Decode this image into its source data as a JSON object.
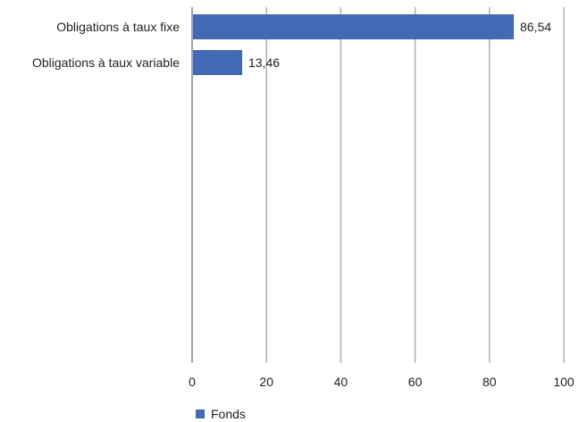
{
  "chart_data": {
    "type": "bar",
    "orientation": "horizontal",
    "categories": [
      "Obligations à taux fixe",
      "Obligations à taux variable"
    ],
    "series": [
      {
        "name": "Fonds",
        "values": [
          86.54,
          13.46
        ],
        "labels": [
          "86,54",
          "13,46"
        ]
      }
    ],
    "xlim": [
      0,
      100
    ],
    "xticks": [
      0,
      20,
      40,
      60,
      80,
      100
    ],
    "grid": "vertical",
    "legend": "bottom-left",
    "title": "",
    "xlabel": "",
    "ylabel": ""
  },
  "colors": {
    "bar": "#4169b6",
    "grid": "#b0b0b0",
    "axis": "#888888"
  }
}
